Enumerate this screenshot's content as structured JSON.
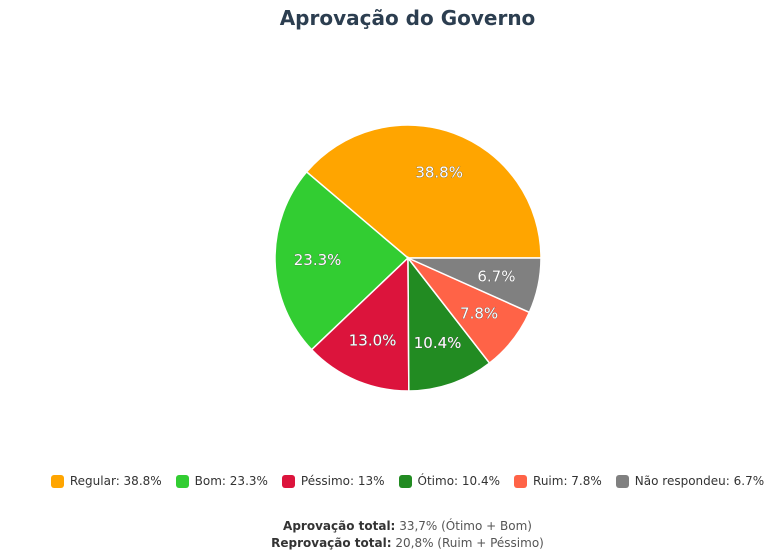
{
  "chart_data": {
    "type": "pie",
    "title": "Aprovação do Governo",
    "slices": [
      {
        "name": "Regular",
        "value": 38.8,
        "label": "38.8%",
        "legend": "Regular: 38.8%",
        "color": "#FFA500"
      },
      {
        "name": "Bom",
        "value": 23.3,
        "label": "23.3%",
        "legend": "Bom: 23.3%",
        "color": "#32CD32"
      },
      {
        "name": "Péssimo",
        "value": 13.0,
        "label": "13.0%",
        "legend": "Péssimo: 13%",
        "color": "#DC143C"
      },
      {
        "name": "Ótimo",
        "value": 10.4,
        "label": "10.4%",
        "legend": "Ótimo: 10.4%",
        "color": "#228B22"
      },
      {
        "name": "Ruim",
        "value": 7.8,
        "label": "7.8%",
        "legend": "Ruim: 7.8%",
        "color": "#FF6347"
      },
      {
        "name": "Não respondeu",
        "value": 6.7,
        "label": "6.7%",
        "legend": "Não respondeu: 6.7%",
        "color": "#808080"
      }
    ],
    "legend_position": "bottom"
  },
  "summary": {
    "approval_label": "Aprovação total:",
    "approval_value": "33,7% (Ótimo + Bom)",
    "disapproval_label": "Reprovação total:",
    "disapproval_value": "20,8% (Ruim + Péssimo)"
  }
}
